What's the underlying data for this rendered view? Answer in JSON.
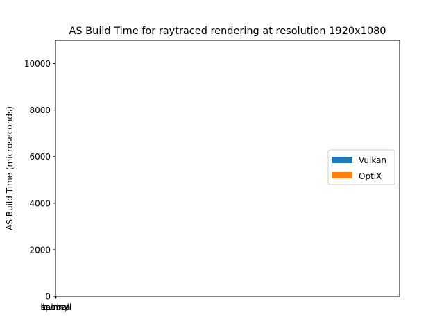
{
  "chart_data": {
    "type": "bar",
    "title": "AS Build Time for raytraced rendering at resolution 1920x1080",
    "xlabel": "",
    "ylabel": "AS Build Time (microseconds)",
    "ylim": [
      0,
      11000
    ],
    "yticks": [
      0,
      2000,
      4000,
      6000,
      8000,
      10000
    ],
    "categories": [
      "bunny",
      "sponza",
      "hairball"
    ],
    "series": [
      {
        "name": "Vulkan",
        "color": "#1f77b4",
        "values": [
          0,
          0,
          0
        ]
      },
      {
        "name": "OptiX",
        "color": "#ff7f0e",
        "values": [
          0,
          0,
          0
        ]
      }
    ],
    "legend_position": "center-right",
    "grid": false
  }
}
